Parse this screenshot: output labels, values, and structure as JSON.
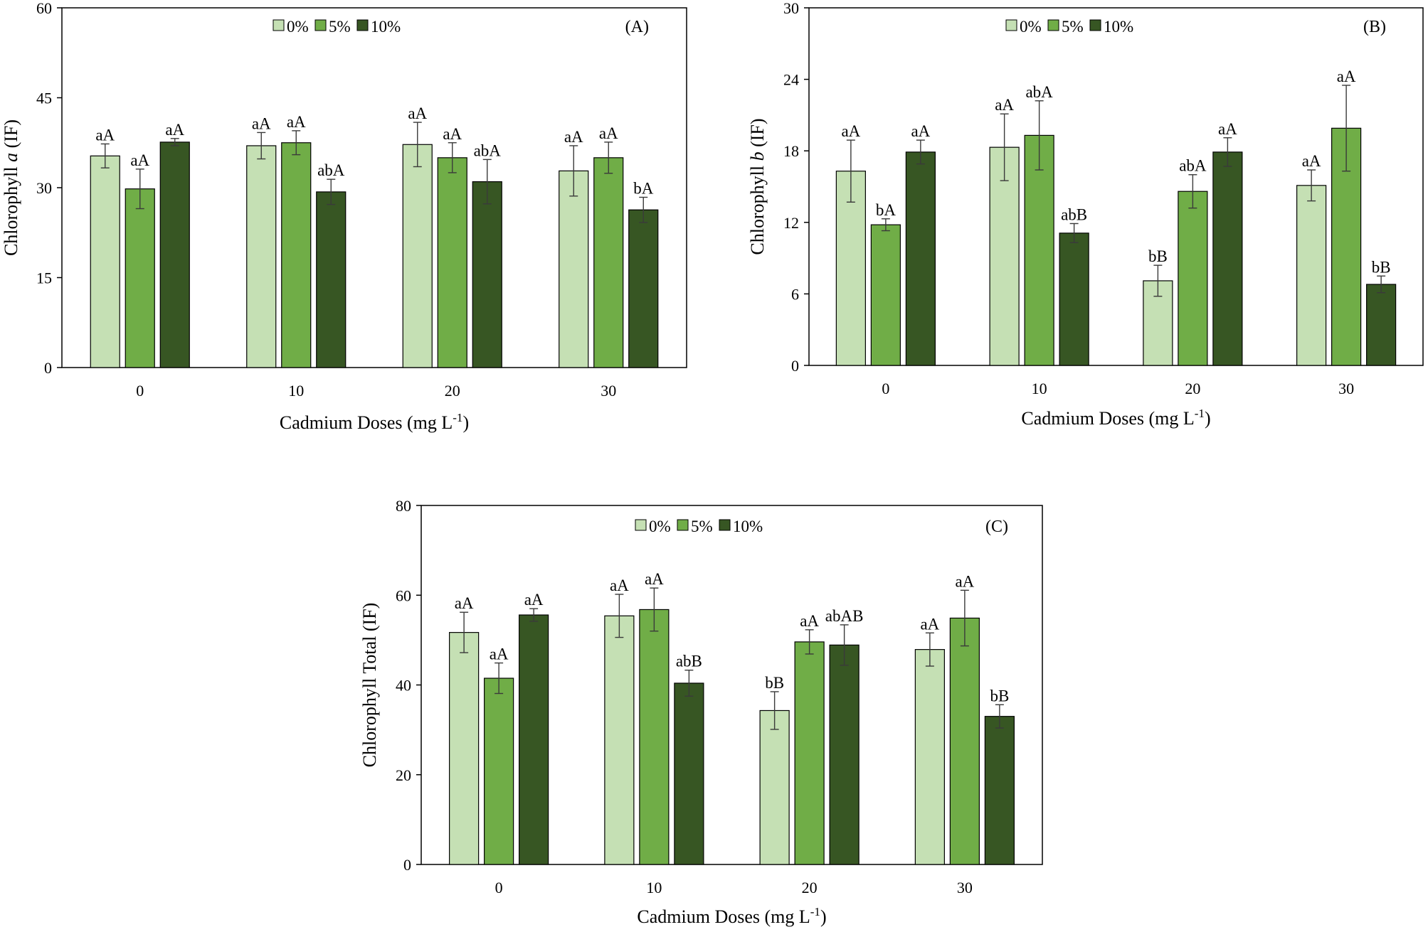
{
  "colors": {
    "0%": "#c5e0b4",
    "5%": "#70ad47",
    "10%": "#375623"
  },
  "chart_data": [
    {
      "type": "bar",
      "panel_label": "(A)",
      "categories": [
        "0",
        "10",
        "20",
        "30"
      ],
      "xlabel": {
        "main": "Cadmium Doses (mg L",
        "sup": "-1",
        "close": ")"
      },
      "ylabel": {
        "pre": "Chlorophyll ",
        "italic": "a",
        "post": " (IF)"
      },
      "ylim": [
        0,
        60
      ],
      "yticks": [
        0,
        15,
        30,
        45,
        60
      ],
      "legend": {
        "placement": "top-center",
        "entries": [
          "0%",
          "5%",
          "10%"
        ]
      },
      "series": [
        {
          "name": "0%",
          "values": [
            35.3,
            37.0,
            37.2,
            32.8
          ],
          "errors": [
            2.0,
            2.2,
            3.7,
            4.2
          ],
          "letters": [
            "aA",
            "aA",
            "aA",
            "aA"
          ]
        },
        {
          "name": "5%",
          "values": [
            29.8,
            37.5,
            35.0,
            35.0
          ],
          "errors": [
            3.3,
            2.0,
            2.5,
            2.6
          ],
          "letters": [
            "aA",
            "aA",
            "aA",
            "aA"
          ]
        },
        {
          "name": "10%",
          "values": [
            37.6,
            29.3,
            31.0,
            26.3
          ],
          "errors": [
            0.6,
            2.1,
            3.7,
            2.1
          ],
          "letters": [
            "aA",
            "abA",
            "abA",
            "bA"
          ]
        }
      ]
    },
    {
      "type": "bar",
      "panel_label": "(B)",
      "categories": [
        "0",
        "10",
        "20",
        "30"
      ],
      "xlabel": {
        "main": "Cadmium Doses (mg L",
        "sup": "-1",
        "close": ")"
      },
      "ylabel": {
        "pre": "Chlorophyll ",
        "italic": "b",
        "post": " (IF)"
      },
      "ylim": [
        0,
        30
      ],
      "yticks": [
        0,
        6,
        12,
        18,
        24,
        30
      ],
      "legend": {
        "placement": "top-center",
        "entries": [
          "0%",
          "5%",
          "10%"
        ]
      },
      "series": [
        {
          "name": "0%",
          "values": [
            16.3,
            18.3,
            7.1,
            15.1
          ],
          "errors": [
            2.6,
            2.8,
            1.3,
            1.3
          ],
          "letters": [
            "aA",
            "aA",
            "bB",
            "aA"
          ]
        },
        {
          "name": "5%",
          "values": [
            11.8,
            19.3,
            14.6,
            19.9
          ],
          "errors": [
            0.5,
            2.9,
            1.4,
            3.6
          ],
          "letters": [
            "bA",
            "abA",
            "abA",
            "aA"
          ]
        },
        {
          "name": "10%",
          "values": [
            17.9,
            11.1,
            17.9,
            6.8
          ],
          "errors": [
            1.0,
            0.8,
            1.2,
            0.7
          ],
          "letters": [
            "aA",
            "abB",
            "aA",
            "bB"
          ]
        }
      ]
    },
    {
      "type": "bar",
      "panel_label": "(C)",
      "categories": [
        "0",
        "10",
        "20",
        "30"
      ],
      "xlabel": {
        "main": "Cadmium Doses (mg L",
        "sup": "-1",
        "close": ")"
      },
      "ylabel": {
        "pre": "Chlorophyll Total (IF)",
        "italic": "",
        "post": ""
      },
      "ylim": [
        0,
        80
      ],
      "yticks": [
        0,
        20,
        40,
        60,
        80
      ],
      "legend": {
        "placement": "top-center",
        "entries": [
          "0%",
          "5%",
          "10%"
        ]
      },
      "series": [
        {
          "name": "0%",
          "values": [
            51.7,
            55.4,
            34.3,
            47.9
          ],
          "errors": [
            4.5,
            4.8,
            4.2,
            3.7
          ],
          "letters": [
            "aA",
            "aA",
            "bB",
            "aA"
          ]
        },
        {
          "name": "5%",
          "values": [
            41.5,
            56.8,
            49.6,
            54.9
          ],
          "errors": [
            3.4,
            4.8,
            2.7,
            6.2
          ],
          "letters": [
            "aA",
            "aA",
            "aA",
            "aA"
          ]
        },
        {
          "name": "10%",
          "values": [
            55.6,
            40.4,
            48.9,
            33.0
          ],
          "errors": [
            1.4,
            2.9,
            4.5,
            2.6
          ],
          "letters": [
            "aA",
            "abB",
            "abAB",
            "bB"
          ]
        }
      ]
    }
  ]
}
